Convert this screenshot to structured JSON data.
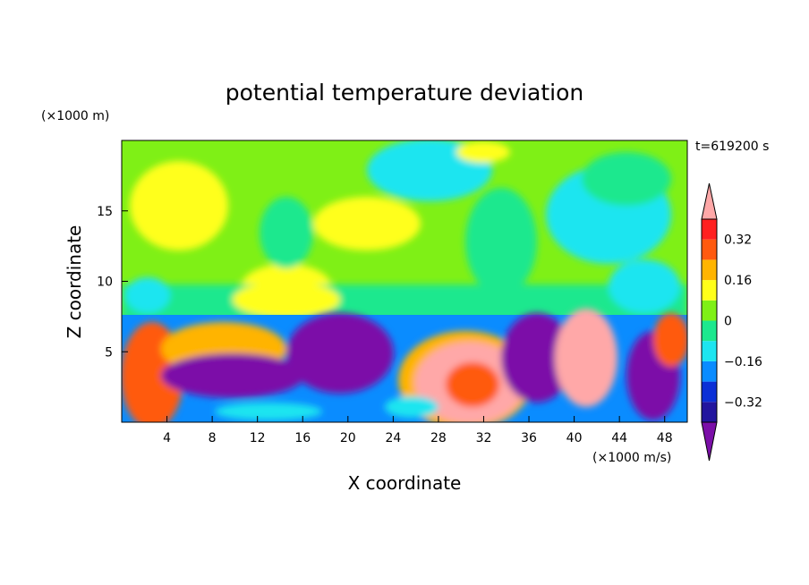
{
  "chart_data": {
    "type": "heatmap",
    "title": "potential temperature deviation",
    "xlabel": "X coordinate",
    "ylabel": "Z coordinate",
    "x_unit": "(×1000 m/s)",
    "y_unit": "(×1000 m)",
    "time_label": "t=619200 s",
    "xlim": [
      0,
      50
    ],
    "ylim": [
      0,
      20
    ],
    "x_ticks": [
      4,
      8,
      12,
      16,
      20,
      24,
      28,
      32,
      36,
      40,
      44,
      48
    ],
    "y_ticks": [
      5,
      10,
      15
    ],
    "colorbar": {
      "levels": [
        -0.4,
        -0.32,
        -0.24,
        -0.16,
        -0.08,
        0,
        0.08,
        0.16,
        0.24,
        0.32,
        0.4
      ],
      "labels": [
        "0.32",
        "0.16",
        "0",
        "−0.16",
        "−0.32"
      ],
      "label_values": [
        0.32,
        0.16,
        0,
        -0.16,
        -0.32
      ],
      "colors": [
        "#7b0fa8",
        "#22159e",
        "#0b2fd6",
        "#0a8cff",
        "#1de5f0",
        "#1ce88e",
        "#7ff016",
        "#ffff1a",
        "#ffb400",
        "#ff5a0f",
        "#ff2020",
        "#ffa8a8"
      ],
      "extend": "both"
    },
    "grid": false,
    "legend": "right"
  }
}
